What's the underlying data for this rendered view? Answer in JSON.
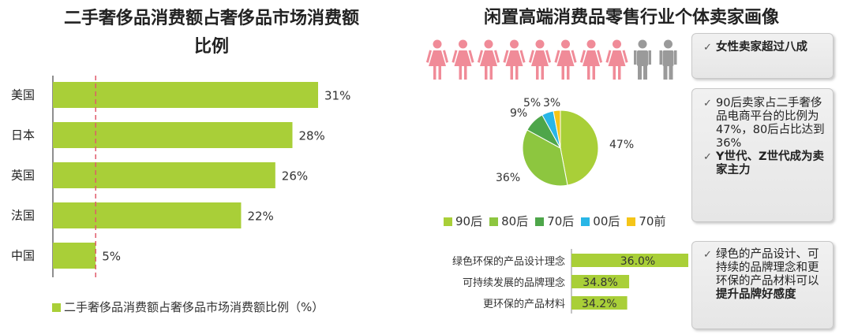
{
  "left_chart": {
    "title_line1": "二手奢侈品消费额占奢侈品市场消费额",
    "title_line2": "比例",
    "legend": "二手奢侈品消费额占奢侈品市场消费额比例（%）",
    "bar_color": "#a9cf38",
    "ref_line_color": "#e05a6a"
  },
  "right_panel": {
    "title": "闲置高端消费品零售行业个体卖家画像",
    "people": {
      "female_count": 8,
      "male_count": 2,
      "female_color": "#f08b98",
      "male_color": "#9a9a9a"
    },
    "note1": {
      "lines": [
        {
          "text": "女性卖家超过八成",
          "bold": true
        }
      ]
    },
    "note2": {
      "lines": [
        {
          "text": "90后卖家占二手奢侈品电商平台的比例为47%，80后占比达到36%",
          "bold": false
        },
        {
          "text": "Y世代、Z世代成为卖家主力",
          "bold": true
        }
      ]
    },
    "note3": {
      "lines": [
        {
          "text": "绿色的产品设计、可持续的品牌理念和更环保的产品材料可以",
          "bold": false,
          "tail": "提升品牌好感度"
        }
      ]
    },
    "check_mark": "✓"
  },
  "chart_data": [
    {
      "type": "bar",
      "orientation": "horizontal",
      "title": "二手奢侈品消费额占奢侈品市场消费额比例",
      "categories": [
        "美国",
        "日本",
        "英国",
        "法国",
        "中国"
      ],
      "values": [
        31,
        28,
        26,
        22,
        5
      ],
      "value_labels": [
        "31%",
        "28%",
        "26%",
        "22%",
        "5%"
      ],
      "series": [
        {
          "name": "二手奢侈品消费额占奢侈品市场消费额比例（%）",
          "values": [
            31,
            28,
            26,
            22,
            5
          ]
        }
      ],
      "reference_line": 5,
      "xlim": [
        0,
        31
      ],
      "legend_position": "bottom"
    },
    {
      "type": "pie",
      "categories": [
        "90后",
        "80后",
        "70后",
        "00后",
        "70前"
      ],
      "values": [
        47,
        36,
        9,
        5,
        3
      ],
      "value_labels": [
        "47%",
        "36%",
        "9%",
        "5%",
        "3%"
      ],
      "colors": [
        "#a9cf38",
        "#8dc63f",
        "#4ea64a",
        "#29b6e6",
        "#f5c518"
      ],
      "legend_position": "bottom"
    },
    {
      "type": "bar",
      "orientation": "horizontal",
      "categories": [
        "绿色环保的产品设计理念",
        "可持续发展的品牌理念",
        "更环保的产品材料"
      ],
      "values": [
        36.0,
        34.8,
        34.2
      ],
      "value_labels": [
        "36.0%",
        "34.8%",
        "34.2%"
      ],
      "color": "#a9cf38"
    }
  ]
}
